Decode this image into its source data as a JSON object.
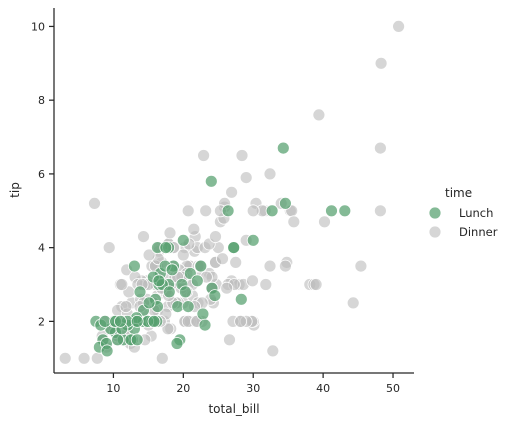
{
  "chart_data": {
    "type": "scatter",
    "title": "",
    "xlabel": "total_bill",
    "ylabel": "tip",
    "xlim": [
      1.5,
      53
    ],
    "ylim": [
      0.6,
      10.5
    ],
    "xticks": [
      10,
      20,
      30,
      40,
      50
    ],
    "yticks": [
      2,
      4,
      6,
      8,
      10
    ],
    "grid": false,
    "legend": {
      "title": "time",
      "placement": "right"
    },
    "series": [
      {
        "name": "Lunch",
        "color": "#55a06e",
        "points": [
          [
            27.2,
            4.0
          ],
          [
            22.8,
            2.2
          ],
          [
            12.7,
            1.5
          ],
          [
            10.3,
            1.7
          ],
          [
            13.0,
            2.0
          ],
          [
            14.3,
            2.0
          ],
          [
            17.9,
            3.0
          ],
          [
            9.6,
            1.8
          ],
          [
            19.2,
            2.4
          ],
          [
            23.1,
            1.9
          ],
          [
            15.0,
            2.0
          ],
          [
            8.5,
            1.5
          ],
          [
            16.5,
            3.0
          ],
          [
            16.3,
            4.0
          ],
          [
            15.5,
            2.0
          ],
          [
            16.0,
            2.6
          ],
          [
            18.6,
            3.5
          ],
          [
            13.8,
            2.8
          ],
          [
            19.5,
            1.5
          ],
          [
            20.0,
            4.2
          ],
          [
            13.0,
            1.8
          ],
          [
            14.3,
            2.3
          ],
          [
            21.0,
            3.3
          ],
          [
            17.9,
            4.0
          ],
          [
            34.3,
            6.7
          ],
          [
            24.1,
            2.9
          ],
          [
            27.2,
            4.0
          ],
          [
            26.4,
            5.0
          ],
          [
            32.7,
            5.0
          ],
          [
            43.1,
            5.0
          ],
          [
            41.2,
            5.0
          ],
          [
            30.0,
            4.2
          ],
          [
            34.6,
            5.2
          ],
          [
            28.3,
            2.6
          ],
          [
            19.8,
            3.0
          ],
          [
            11.4,
            1.5
          ],
          [
            10.1,
            2.0
          ],
          [
            8.0,
            1.3
          ],
          [
            12.5,
            1.5
          ],
          [
            9.0,
            1.4
          ],
          [
            7.5,
            2.0
          ],
          [
            16.3,
            2.4
          ],
          [
            16.7,
            3.3
          ],
          [
            17.4,
            3.5
          ],
          [
            20.3,
            2.8
          ],
          [
            22.5,
            3.5
          ],
          [
            24.5,
            2.7
          ],
          [
            16.2,
            2.0
          ],
          [
            12.0,
            1.9
          ],
          [
            13.3,
            2.1
          ],
          [
            15.7,
            3.2
          ],
          [
            10.6,
            1.5
          ],
          [
            8.2,
            1.9
          ],
          [
            12.0,
            2.0
          ],
          [
            11.2,
            1.8
          ],
          [
            13.4,
            1.5
          ],
          [
            19.1,
            1.4
          ],
          [
            14.9,
            2.0
          ],
          [
            18.4,
            3.4
          ],
          [
            24.0,
            5.8
          ],
          [
            8.8,
            2.0
          ],
          [
            10.3,
            2.0
          ],
          [
            22.0,
            3.1
          ],
          [
            17.0,
            3.0
          ],
          [
            16.5,
            3.1
          ],
          [
            20.7,
            2.4
          ],
          [
            9.1,
            1.2
          ],
          [
            17.5,
            4.0
          ],
          [
            15.1,
            2.5
          ],
          [
            13.0,
            3.5
          ],
          [
            11.0,
            2.0
          ],
          [
            13.4,
            2.0
          ],
          [
            15.8,
            2.0
          ],
          [
            18.0,
            2.8
          ]
        ]
      },
      {
        "name": "Dinner",
        "color": "#bdbdbd",
        "points": [
          [
            17.0,
            1.0
          ],
          [
            10.3,
            1.7
          ],
          [
            21.0,
            3.5
          ],
          [
            23.7,
            3.3
          ],
          [
            24.6,
            3.6
          ],
          [
            25.3,
            4.7
          ],
          [
            8.8,
            2.0
          ],
          [
            26.9,
            3.1
          ],
          [
            15.0,
            2.0
          ],
          [
            14.8,
            3.1
          ],
          [
            10.3,
            1.7
          ],
          [
            35.3,
            5.0
          ],
          [
            15.4,
            1.6
          ],
          [
            18.4,
            3.0
          ],
          [
            14.8,
            3.0
          ],
          [
            21.6,
            3.9
          ],
          [
            10.3,
            1.7
          ],
          [
            16.3,
            3.5
          ],
          [
            16.9,
            3.6
          ],
          [
            14.3,
            4.3
          ],
          [
            20.7,
            3.0
          ],
          [
            17.9,
            4.1
          ],
          [
            16.5,
            3.9
          ],
          [
            13.4,
            2.0
          ],
          [
            18.2,
            3.0
          ],
          [
            19.8,
            3.0
          ],
          [
            17.8,
            2.4
          ],
          [
            24.1,
            2.9
          ],
          [
            21.7,
            4.3
          ],
          [
            19.6,
            3.0
          ],
          [
            15.0,
            1.9
          ],
          [
            17.6,
            3.0
          ],
          [
            20.3,
            2.8
          ],
          [
            18.3,
            3.0
          ],
          [
            8.5,
            1.5
          ],
          [
            25.0,
            4.0
          ],
          [
            14.0,
            3.1
          ],
          [
            12.0,
            1.9
          ],
          [
            21.3,
            2.7
          ],
          [
            16.3,
            2.7
          ],
          [
            22.3,
            3.4
          ],
          [
            17.3,
            3.0
          ],
          [
            20.1,
            3.2
          ],
          [
            16.0,
            3.0
          ],
          [
            19.7,
            2.9
          ],
          [
            14.1,
            2.0
          ],
          [
            28.0,
            3.0
          ],
          [
            22.5,
            3.5
          ],
          [
            20.9,
            3.5
          ],
          [
            22.1,
            2.5
          ],
          [
            22.2,
            3.5
          ],
          [
            25.9,
            5.1
          ],
          [
            26.9,
            5.5
          ],
          [
            17.3,
            2.0
          ],
          [
            24.7,
            3.0
          ],
          [
            30.1,
            1.9
          ],
          [
            17.9,
            4.1
          ],
          [
            9.6,
            1.8
          ],
          [
            18.6,
            3.5
          ],
          [
            20.5,
            3.5
          ],
          [
            30.4,
            5.2
          ],
          [
            19.4,
            3.4
          ],
          [
            14.2,
            2.2
          ],
          [
            40.2,
            4.7
          ],
          [
            38.1,
            3.0
          ],
          [
            20.0,
            3.0
          ],
          [
            22.0,
            4.0
          ],
          [
            16.0,
            3.5
          ],
          [
            32.4,
            6.0
          ],
          [
            28.6,
            3.0
          ],
          [
            24.1,
            3.2
          ],
          [
            22.1,
            3.5
          ],
          [
            35.5,
            5.0
          ],
          [
            29.0,
            5.9
          ],
          [
            24.6,
            3.6
          ],
          [
            25.8,
            4.8
          ],
          [
            23.3,
            3.2
          ],
          [
            16.5,
            3.3
          ],
          [
            48.3,
            9.0
          ],
          [
            12.6,
            2.5
          ],
          [
            20.2,
            4.0
          ],
          [
            31.7,
            5.0
          ],
          [
            24.1,
            2.9
          ],
          [
            26.4,
            3.0
          ],
          [
            10.1,
            1.8
          ],
          [
            8.4,
            1.6
          ],
          [
            30.0,
            2.0
          ],
          [
            20.5,
            3.3
          ],
          [
            20.8,
            4.1
          ],
          [
            29.9,
            3.1
          ],
          [
            28.2,
            2.0
          ],
          [
            18.2,
            1.8
          ],
          [
            22.7,
            2.0
          ],
          [
            16.0,
            2.0
          ],
          [
            18.0,
            3.2
          ],
          [
            50.8,
            10.0
          ],
          [
            27.1,
            2.0
          ],
          [
            25.9,
            5.2
          ],
          [
            25.6,
            3.7
          ],
          [
            29.0,
            4.2
          ],
          [
            31.3,
            5.0
          ],
          [
            17.8,
            3.0
          ],
          [
            12.0,
            1.9
          ],
          [
            27.3,
            3.0
          ],
          [
            48.2,
            5.0
          ],
          [
            20.3,
            2.0
          ],
          [
            18.7,
            4.0
          ],
          [
            12.8,
            2.0
          ],
          [
            24.3,
            2.5
          ],
          [
            21.0,
            2.0
          ],
          [
            44.3,
            2.5
          ],
          [
            22.4,
            3.5
          ],
          [
            20.2,
            2.0
          ],
          [
            20.7,
            5.0
          ],
          [
            13.8,
            2.0
          ],
          [
            15.7,
            2.5
          ],
          [
            11.6,
            1.5
          ],
          [
            12.6,
            2.0
          ],
          [
            20.0,
            2.5
          ],
          [
            48.2,
            6.7
          ],
          [
            34.8,
            3.6
          ],
          [
            38.7,
            3.0
          ],
          [
            23.1,
            4.0
          ],
          [
            13.3,
            2.0
          ],
          [
            28.4,
            6.5
          ],
          [
            18.3,
            3.0
          ],
          [
            32.8,
            1.2
          ],
          [
            24.1,
            2.9
          ],
          [
            7.3,
            5.2
          ],
          [
            22.9,
            6.5
          ],
          [
            20.7,
            2.0
          ],
          [
            15.5,
            3.5
          ],
          [
            21.5,
            4.5
          ],
          [
            29.8,
            2.0
          ],
          [
            35.8,
            4.7
          ],
          [
            39.4,
            7.6
          ],
          [
            45.4,
            3.5
          ],
          [
            9.7,
            1.8
          ],
          [
            3.1,
            1.0
          ],
          [
            7.7,
            1.0
          ],
          [
            5.8,
            1.0
          ],
          [
            10.6,
            1.5
          ],
          [
            11.9,
            3.4
          ],
          [
            14.5,
            3.0
          ],
          [
            13.1,
            3.2
          ],
          [
            15.4,
            2.0
          ],
          [
            16.3,
            2.3
          ],
          [
            11.2,
            2.4
          ],
          [
            12.4,
            1.4
          ],
          [
            16.5,
            4.0
          ],
          [
            32.4,
            3.5
          ],
          [
            34.6,
            3.5
          ],
          [
            16.0,
            3.5
          ],
          [
            26.6,
            1.5
          ],
          [
            13.9,
            2.6
          ],
          [
            10.6,
            2.3
          ],
          [
            17.5,
            2.8
          ],
          [
            23.7,
            4.1
          ],
          [
            12.7,
            2.0
          ],
          [
            15.8,
            2.3
          ],
          [
            10.3,
            1.7
          ],
          [
            19.3,
            2.5
          ],
          [
            14.0,
            2.0
          ],
          [
            11.7,
            1.6
          ],
          [
            9.4,
            4.0
          ],
          [
            12.0,
            2.2
          ],
          [
            14.8,
            2.6
          ],
          [
            39.0,
            3.0
          ],
          [
            10.8,
            2.0
          ],
          [
            17.8,
            1.8
          ],
          [
            11.4,
            2.0
          ],
          [
            29.0,
            2.0
          ],
          [
            11.0,
            3.0
          ],
          [
            10.6,
            1.6
          ],
          [
            14.3,
            2.5
          ],
          [
            18.8,
            3.2
          ],
          [
            25.3,
            5.0
          ],
          [
            17.5,
            2.2
          ],
          [
            13.5,
            3.0
          ],
          [
            12.2,
            2.8
          ],
          [
            16.4,
            3.7
          ],
          [
            27.5,
            3.6
          ],
          [
            22.0,
            2.0
          ],
          [
            24.6,
            4.3
          ],
          [
            20.0,
            3.8
          ],
          [
            23.2,
            5.0
          ],
          [
            23.9,
            2.6
          ],
          [
            30.0,
            5.0
          ],
          [
            14.5,
            1.5
          ],
          [
            11.2,
            3.0
          ],
          [
            21.3,
            3.0
          ],
          [
            12.0,
            1.7
          ],
          [
            31.8,
            3.0
          ],
          [
            15.0,
            3.0
          ],
          [
            18.6,
            4.0
          ],
          [
            13.0,
            1.3
          ],
          [
            19.0,
            2.5
          ],
          [
            34.0,
            5.2
          ],
          [
            14.1,
            3.0
          ],
          [
            22.7,
            2.5
          ],
          [
            20.5,
            2.8
          ],
          [
            18.1,
            4.4
          ],
          [
            15.1,
            3.8
          ],
          [
            26.2,
            2.9
          ],
          [
            21.9,
            2.0
          ],
          [
            16.7,
            2.0
          ],
          [
            19.8,
            3.2
          ],
          [
            18.5,
            2.5
          ],
          [
            19.2,
            3.2
          ],
          [
            13.8,
            2.4
          ],
          [
            9.0,
            1.3
          ],
          [
            17.9,
            2.7
          ],
          [
            16.9,
            2.9
          ],
          [
            28.2,
            2.0
          ],
          [
            11.8,
            2.4
          ],
          [
            21.6,
            2.4
          ]
        ]
      }
    ]
  }
}
